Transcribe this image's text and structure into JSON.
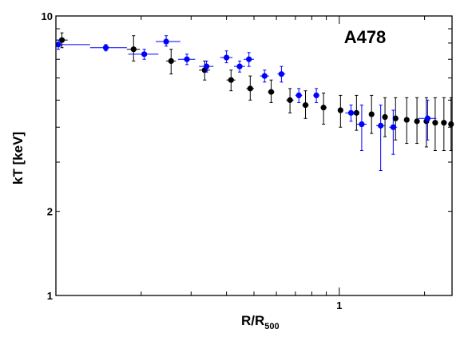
{
  "chart_data": {
    "type": "scatter",
    "title": "",
    "annotation": "A478",
    "xlabel": "R/R",
    "xlabel_sub": "500",
    "ylabel": "kT [keV]",
    "x_scale": "log",
    "y_scale": "log",
    "xlim": [
      0.1,
      2.5
    ],
    "ylim": [
      1,
      10
    ],
    "x_tick_labels": [
      {
        "value": 1,
        "label": "1"
      }
    ],
    "y_tick_labels": [
      {
        "value": 1,
        "label": "1"
      },
      {
        "value": 2,
        "label": "2"
      },
      {
        "value": 10,
        "label": "10"
      }
    ],
    "grid": false,
    "legend": "none",
    "series": [
      {
        "color": "#000000",
        "points": [
          {
            "x": 0.105,
            "y": 8.2,
            "xlo": 0.1,
            "xhi": 0.11,
            "ylo": 7.7,
            "yhi": 8.7
          },
          {
            "x": 0.188,
            "y": 7.6,
            "xlo": 0.178,
            "xhi": 0.198,
            "ylo": 6.9,
            "yhi": 8.5
          },
          {
            "x": 0.255,
            "y": 6.9,
            "xlo": 0.245,
            "xhi": 0.265,
            "ylo": 6.2,
            "yhi": 7.6
          },
          {
            "x": 0.335,
            "y": 6.4,
            "xlo": 0.32,
            "xhi": 0.35,
            "ylo": 5.9,
            "yhi": 6.9
          },
          {
            "x": 0.415,
            "y": 5.9,
            "xlo": 0.4,
            "xhi": 0.43,
            "ylo": 5.4,
            "yhi": 6.4
          },
          {
            "x": 0.485,
            "y": 5.5,
            "xlo": 0.47,
            "xhi": 0.5,
            "ylo": 5.0,
            "yhi": 6.1
          },
          {
            "x": 0.575,
            "y": 5.35,
            "xlo": 0.56,
            "xhi": 0.59,
            "ylo": 4.9,
            "yhi": 5.9
          },
          {
            "x": 0.67,
            "y": 5.0,
            "xlo": 0.65,
            "xhi": 0.69,
            "ylo": 4.5,
            "yhi": 5.5
          },
          {
            "x": 0.76,
            "y": 4.8,
            "xlo": 0.74,
            "xhi": 0.78,
            "ylo": 4.3,
            "yhi": 5.4
          },
          {
            "x": 0.88,
            "y": 4.7,
            "xlo": 0.86,
            "xhi": 0.9,
            "ylo": 4.1,
            "yhi": 5.3
          },
          {
            "x": 1.01,
            "y": 4.6,
            "xlo": 0.99,
            "xhi": 1.03,
            "ylo": 4.0,
            "yhi": 5.2
          },
          {
            "x": 1.15,
            "y": 4.5,
            "xlo": 1.13,
            "xhi": 1.17,
            "ylo": 3.9,
            "yhi": 5.2
          },
          {
            "x": 1.3,
            "y": 4.45,
            "xlo": 1.28,
            "xhi": 1.32,
            "ylo": 3.8,
            "yhi": 5.2
          },
          {
            "x": 1.45,
            "y": 4.35,
            "xlo": 1.43,
            "xhi": 1.47,
            "ylo": 3.7,
            "yhi": 5.1
          },
          {
            "x": 1.58,
            "y": 4.3,
            "xlo": 1.56,
            "xhi": 1.6,
            "ylo": 3.6,
            "yhi": 5.1
          },
          {
            "x": 1.73,
            "y": 4.25,
            "xlo": 1.71,
            "xhi": 1.75,
            "ylo": 3.5,
            "yhi": 5.1
          },
          {
            "x": 1.88,
            "y": 4.2,
            "xlo": 1.86,
            "xhi": 1.9,
            "ylo": 3.5,
            "yhi": 5.1
          },
          {
            "x": 2.03,
            "y": 4.2,
            "xlo": 2.01,
            "xhi": 2.05,
            "ylo": 3.4,
            "yhi": 5.1
          },
          {
            "x": 2.18,
            "y": 4.15,
            "xlo": 2.16,
            "xhi": 2.2,
            "ylo": 3.3,
            "yhi": 5.1
          },
          {
            "x": 2.34,
            "y": 4.15,
            "xlo": 2.32,
            "xhi": 2.36,
            "ylo": 3.3,
            "yhi": 5.1
          },
          {
            "x": 2.48,
            "y": 4.1,
            "xlo": 2.46,
            "xhi": 2.5,
            "ylo": 3.3,
            "yhi": 5.1
          }
        ]
      },
      {
        "color": "#0000ff",
        "points": [
          {
            "x": 0.102,
            "y": 7.9,
            "xlo": 0.1,
            "xhi": 0.132,
            "ylo": 7.6,
            "yhi": 8.2
          },
          {
            "x": 0.15,
            "y": 7.7,
            "xlo": 0.132,
            "xhi": 0.178,
            "ylo": 7.5,
            "yhi": 7.9
          },
          {
            "x": 0.205,
            "y": 7.3,
            "xlo": 0.18,
            "xhi": 0.23,
            "ylo": 7.0,
            "yhi": 7.6
          },
          {
            "x": 0.245,
            "y": 8.1,
            "xlo": 0.225,
            "xhi": 0.275,
            "ylo": 7.8,
            "yhi": 8.5
          },
          {
            "x": 0.29,
            "y": 7.0,
            "xlo": 0.27,
            "xhi": 0.31,
            "ylo": 6.7,
            "yhi": 7.3
          },
          {
            "x": 0.34,
            "y": 6.6,
            "xlo": 0.32,
            "xhi": 0.36,
            "ylo": 6.3,
            "yhi": 6.9
          },
          {
            "x": 0.4,
            "y": 7.1,
            "xlo": 0.38,
            "xhi": 0.42,
            "ylo": 6.8,
            "yhi": 7.5
          },
          {
            "x": 0.445,
            "y": 6.6,
            "xlo": 0.425,
            "xhi": 0.465,
            "ylo": 6.3,
            "yhi": 6.9
          },
          {
            "x": 0.48,
            "y": 7.0,
            "xlo": 0.46,
            "xhi": 0.5,
            "ylo": 6.6,
            "yhi": 7.4
          },
          {
            "x": 0.545,
            "y": 6.1,
            "xlo": 0.525,
            "xhi": 0.565,
            "ylo": 5.8,
            "yhi": 6.4
          },
          {
            "x": 0.625,
            "y": 6.2,
            "xlo": 0.605,
            "xhi": 0.645,
            "ylo": 5.8,
            "yhi": 6.6
          },
          {
            "x": 0.72,
            "y": 5.2,
            "xlo": 0.7,
            "xhi": 0.74,
            "ylo": 4.9,
            "yhi": 5.5
          },
          {
            "x": 0.83,
            "y": 5.2,
            "xlo": 0.81,
            "xhi": 0.85,
            "ylo": 4.9,
            "yhi": 5.5
          },
          {
            "x": 1.1,
            "y": 4.5,
            "xlo": 1.05,
            "xhi": 1.15,
            "ylo": 4.2,
            "yhi": 4.8
          },
          {
            "x": 1.2,
            "y": 4.1,
            "xlo": 1.15,
            "xhi": 1.25,
            "ylo": 3.3,
            "yhi": 4.8
          },
          {
            "x": 1.4,
            "y": 4.05,
            "xlo": 1.35,
            "xhi": 1.45,
            "ylo": 2.8,
            "yhi": 4.8
          },
          {
            "x": 1.55,
            "y": 4.0,
            "xlo": 1.5,
            "xhi": 1.6,
            "ylo": 3.2,
            "yhi": 4.6
          },
          {
            "x": 2.05,
            "y": 4.3,
            "xlo": 1.9,
            "xhi": 2.2,
            "ylo": 3.6,
            "yhi": 5.0
          }
        ]
      }
    ]
  }
}
